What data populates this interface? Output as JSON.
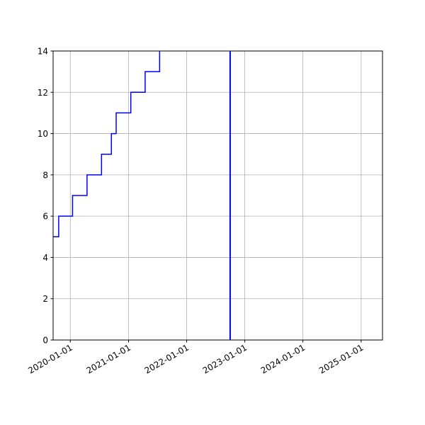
{
  "chart_data": {
    "type": "line",
    "title": "",
    "xlabel": "",
    "ylabel": "",
    "x_axis_type": "date",
    "xlim": [
      "2019-09-15",
      "2025-05-15"
    ],
    "ylim": [
      0,
      14
    ],
    "grid": true,
    "legend": "none",
    "x_ticks": [
      "2020-01-01",
      "2021-01-01",
      "2022-01-01",
      "2023-01-01",
      "2024-01-01",
      "2025-01-01"
    ],
    "y_ticks": [
      0,
      2,
      4,
      6,
      8,
      10,
      12,
      14
    ],
    "series": [
      {
        "line_style": "steps-post",
        "color": "#0000ff",
        "x": [
          "2019-09-15",
          "2019-10-20",
          "2020-01-15",
          "2020-04-15",
          "2020-07-15",
          "2020-09-15",
          "2020-10-15",
          "2021-01-15",
          "2021-04-15",
          "2021-07-15",
          "2021-07-15"
        ],
        "y": [
          5,
          6,
          7,
          8,
          9,
          10,
          11,
          12,
          13,
          14,
          14
        ]
      }
    ],
    "vertical_line": {
      "x": "2022-10-01",
      "color": "#0000ff"
    }
  }
}
